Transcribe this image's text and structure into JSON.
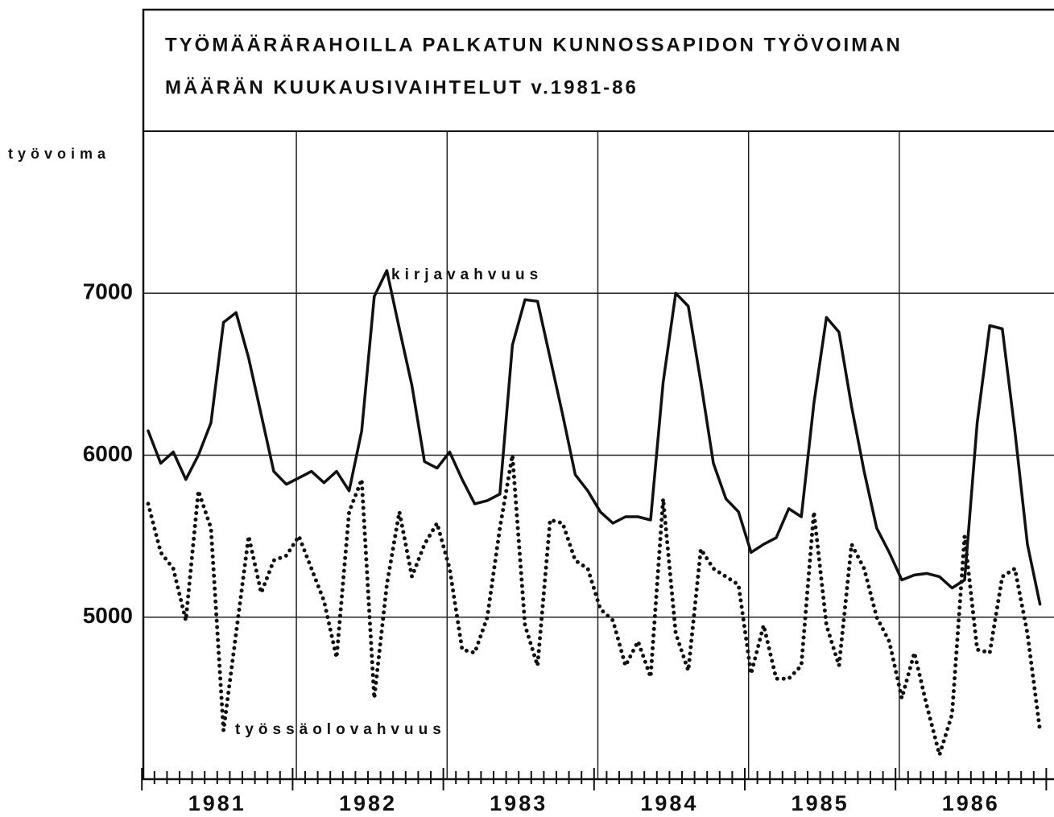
{
  "chart_data": {
    "type": "line",
    "title": [
      "TYÖMÄÄRÄRAHOILLA PALKATUN KUNNOSSAPIDON TYÖVOIMAN",
      "MÄÄRÄN KUUKAUSIVAIHTELUT v.1981-86"
    ],
    "y_label": "työvoima",
    "categories": [
      null,
      null,
      null,
      null,
      null,
      "1981",
      null,
      null,
      null,
      null,
      null,
      null,
      null,
      null,
      null,
      null,
      null,
      "1982",
      null,
      null,
      null,
      null,
      null,
      null,
      null,
      null,
      null,
      null,
      null,
      "1983",
      null,
      null,
      null,
      null,
      null,
      null,
      null,
      null,
      null,
      null,
      null,
      "1984",
      null,
      null,
      null,
      null,
      null,
      null,
      null,
      null,
      null,
      null,
      null,
      "1985",
      null,
      null,
      null,
      null,
      null,
      null,
      null,
      null,
      null,
      null,
      null,
      "1986",
      null,
      null,
      null,
      null,
      null,
      null
    ],
    "series": [
      {
        "name": "kirjavahvuus",
        "color": "#111111",
        "style": "solid",
        "values": [
          6150,
          5950,
          6020,
          5850,
          6000,
          6200,
          6820,
          6880,
          6600,
          6250,
          5900,
          5820,
          5860,
          5900,
          5830,
          5900,
          5780,
          6150,
          6980,
          7140,
          6780,
          6430,
          5960,
          5920,
          6020,
          5850,
          5700,
          5720,
          5760,
          6680,
          6960,
          6950,
          6600,
          6250,
          5880,
          5780,
          5650,
          5580,
          5620,
          5620,
          5600,
          6450,
          7000,
          6920,
          6450,
          5950,
          5730,
          5650,
          5400,
          5450,
          5490,
          5670,
          5620,
          6320,
          6850,
          6760,
          6300,
          5900,
          5550,
          5400,
          5230,
          5260,
          5270,
          5250,
          5180,
          5230,
          6200,
          6800,
          6780,
          6150,
          5450,
          5080
        ]
      },
      {
        "name": "työssäolovahvuus",
        "color": "#111111",
        "style": "dotted",
        "values": [
          5700,
          5400,
          5300,
          4980,
          5780,
          5550,
          4300,
          4900,
          5500,
          5150,
          5350,
          5380,
          5500,
          5300,
          5100,
          4750,
          5650,
          5850,
          4500,
          5200,
          5650,
          5250,
          5450,
          5580,
          5300,
          4800,
          4780,
          5000,
          5550,
          6000,
          4950,
          4700,
          5600,
          5580,
          5350,
          5300,
          5050,
          4980,
          4700,
          4850,
          4630,
          5730,
          4900,
          4670,
          5420,
          5300,
          5250,
          5200,
          4650,
          4950,
          4620,
          4620,
          4700,
          5650,
          4950,
          4700,
          5450,
          5300,
          5000,
          4850,
          4500,
          4780,
          4450,
          4150,
          4400,
          5500,
          4800,
          4780,
          5250,
          5300,
          4900,
          4300
        ]
      }
    ],
    "ylim": [
      4000,
      8000
    ],
    "yticks": [
      5000,
      6000,
      7000
    ],
    "grid": true
  }
}
